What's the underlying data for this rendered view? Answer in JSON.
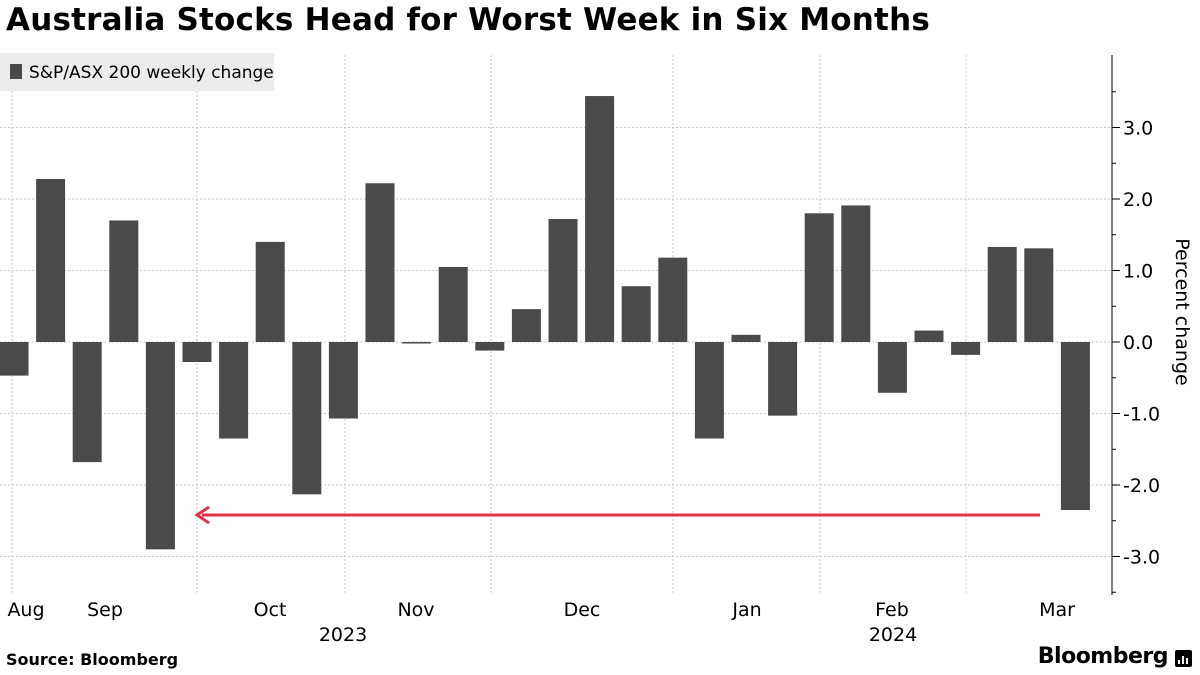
{
  "title": "Australia Stocks Head for Worst Week in Six Months",
  "source": "Source: Bloomberg",
  "brand": "Bloomberg",
  "chart_data": {
    "type": "bar",
    "legend": "S&P/ASX 200 weekly change",
    "legend_position": "top-left",
    "ylabel": "Percent change",
    "ylim": [
      -3.5,
      4.0
    ],
    "yticks": [
      3.0,
      2.0,
      1.0,
      0.0,
      -1.0,
      -2.0,
      -3.0
    ],
    "ytick_labels": [
      "3.0",
      "2.0",
      "1.0",
      "0.0",
      "-1.0",
      "-2.0",
      "-3.0"
    ],
    "grid": true,
    "bar_color": "#4a4a4a",
    "annotation_color": "#e0334a",
    "annotation": "arrow from latest week pointing back to the September low",
    "x_month_labels": [
      "Aug",
      "Sep",
      "Oct",
      "Nov",
      "Dec",
      "Jan",
      "Feb",
      "Mar"
    ],
    "x_year_labels": [
      "2023",
      "2024"
    ],
    "values": [
      -0.47,
      2.28,
      -1.68,
      1.7,
      -2.9,
      -0.28,
      -1.35,
      1.4,
      -2.13,
      -1.07,
      2.22,
      -0.02,
      1.05,
      -0.12,
      0.46,
      1.72,
      3.44,
      0.78,
      1.18,
      -1.35,
      0.1,
      -1.03,
      1.8,
      1.91,
      -0.71,
      0.16,
      -0.18,
      1.33,
      1.31,
      -2.35
    ]
  }
}
